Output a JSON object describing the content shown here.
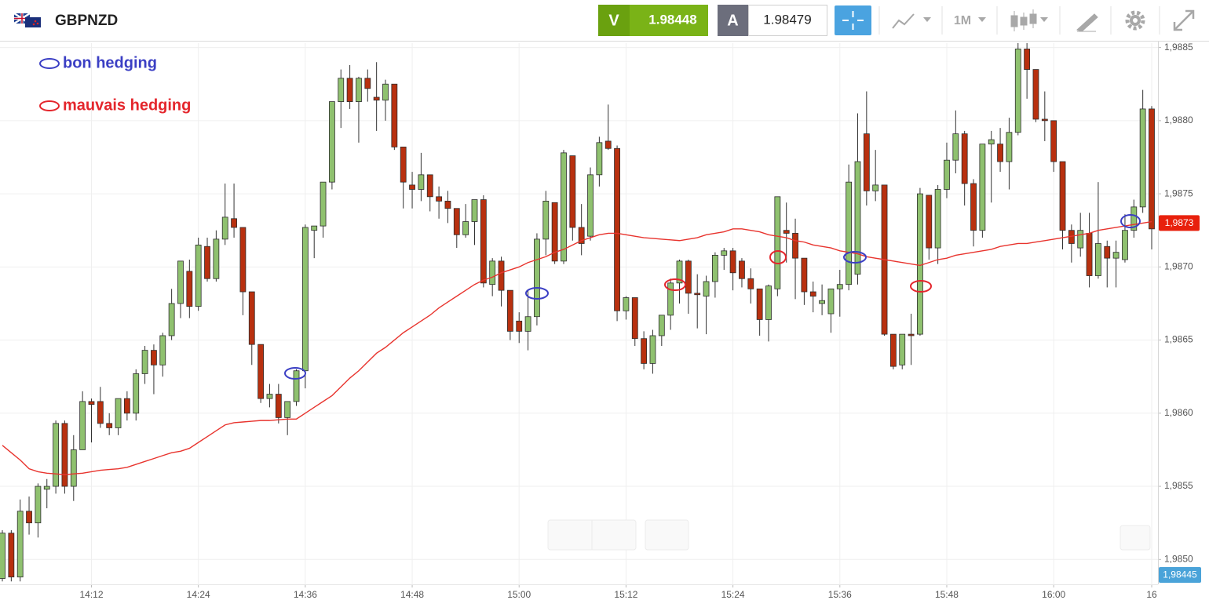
{
  "header": {
    "symbol": "GBPNZD",
    "sell_label": "V",
    "sell_price": "1.98448",
    "buy_label": "A",
    "buy_price": "1.98479",
    "timeframe": "1M"
  },
  "annotations": [
    {
      "label": "bon hedging",
      "color": "#3b3fc4"
    },
    {
      "label": "mauvais hedging",
      "color": "#e4262c"
    }
  ],
  "last_price": {
    "value": 1.9873,
    "label": "1,9873",
    "color": "#e8200c"
  },
  "bid_label": "1,98445",
  "chart_data": {
    "type": "candlestick",
    "up_color": "#8fc16f",
    "down_color": "#b8300f",
    "ylim": [
      1.98483,
      1.98853
    ],
    "yticks": [
      {
        "value": 1.985,
        "label": "1,9850"
      },
      {
        "value": 1.9855,
        "label": "1,9855"
      },
      {
        "value": 1.986,
        "label": "1,9860"
      },
      {
        "value": 1.9865,
        "label": "1,9865"
      },
      {
        "value": 1.987,
        "label": "1,9870"
      },
      {
        "value": 1.9875,
        "label": "1,9875"
      },
      {
        "value": 1.988,
        "label": "1,9880"
      },
      {
        "value": 1.9885,
        "label": "1,9885"
      }
    ],
    "grid": true,
    "categories": [
      null,
      null,
      null,
      null,
      null,
      null,
      null,
      null,
      null,
      null,
      "14:12",
      null,
      null,
      null,
      null,
      null,
      null,
      null,
      null,
      null,
      null,
      null,
      "14:24",
      null,
      null,
      null,
      null,
      null,
      null,
      null,
      null,
      null,
      null,
      null,
      "14:36",
      null,
      null,
      null,
      null,
      null,
      null,
      null,
      null,
      null,
      null,
      null,
      "14:48",
      null,
      null,
      null,
      null,
      null,
      null,
      null,
      null,
      null,
      null,
      null,
      "15:00",
      null,
      null,
      null,
      null,
      null,
      null,
      null,
      null,
      null,
      null,
      null,
      "15:12",
      null,
      null,
      null,
      null,
      null,
      null,
      null,
      null,
      null,
      null,
      null,
      "15:24",
      null,
      null,
      null,
      null,
      null,
      null,
      null,
      null,
      null,
      null,
      null,
      "15:36",
      null,
      null,
      null,
      null,
      null,
      null,
      null,
      null,
      null,
      null,
      null,
      "15:48",
      null,
      null,
      null,
      null,
      null,
      null,
      null,
      null,
      null,
      null,
      null,
      "16:00",
      null,
      null,
      null,
      null,
      null,
      null,
      null,
      null,
      null,
      null,
      "16"
    ],
    "open": [
      1.98487,
      1.98518,
      1.98488,
      1.98533,
      1.98525,
      1.98548,
      1.9855,
      1.98593,
      1.9855,
      1.98575,
      1.98608,
      1.98608,
      1.98593,
      1.9859,
      1.9861,
      1.986,
      1.98627,
      1.98643,
      1.98633,
      1.98653,
      1.98675,
      1.98697,
      1.98673,
      1.98714,
      1.98692,
      1.98719,
      1.98733,
      1.98727,
      1.98683,
      1.98647,
      1.9861,
      1.98613,
      1.98597,
      1.98608,
      1.98629,
      1.98725,
      1.98728,
      1.98758,
      1.98813,
      1.98829,
      1.98813,
      1.98829,
      1.98816,
      1.98814,
      1.98825,
      1.98782,
      1.98756,
      1.98753,
      1.98763,
      1.98748,
      1.98745,
      1.9874,
      1.98722,
      1.98731,
      1.98746,
      1.98688,
      1.98704,
      1.98684,
      1.98663,
      1.98656,
      1.98666,
      1.98719,
      1.98744,
      1.98704,
      1.98776,
      1.98727,
      1.98721,
      1.98763,
      1.98786,
      1.98781,
      1.9867,
      1.98679,
      1.98651,
      1.98634,
      1.98653,
      1.98667,
      1.98689,
      1.98704,
      1.98682,
      1.9868,
      1.9869,
      1.98708,
      1.98711,
      1.98704,
      1.98692,
      1.98685,
      1.98664,
      1.98685,
      1.98725,
      1.98723,
      1.98706,
      1.98683,
      1.98675,
      1.98668,
      1.98685,
      1.98688,
      1.98695,
      1.98791,
      1.98752,
      1.98756,
      1.98654,
      1.98633,
      1.98654,
      1.98654,
      1.98749,
      1.98713,
      1.98753,
      1.98773,
      1.98791,
      1.98757,
      1.98725,
      1.98784,
      1.98784,
      1.98772,
      1.98792,
      1.98849,
      1.98835,
      1.98801,
      1.988,
      1.98772,
      1.98725,
      1.98713,
      1.98723,
      1.98694,
      1.98714,
      1.98706,
      1.98705,
      1.98725,
      1.98741,
      1.98808
    ],
    "high": [
      1.9852,
      1.9852,
      1.98541,
      1.98543,
      1.98552,
      1.98555,
      1.98595,
      1.98595,
      1.98585,
      1.98615,
      1.9861,
      1.98618,
      1.986,
      1.9861,
      1.98615,
      1.9863,
      1.98646,
      1.98647,
      1.98655,
      1.98685,
      1.98704,
      1.98705,
      1.9872,
      1.9872,
      1.98725,
      1.98757,
      1.98757,
      1.98727,
      1.98683,
      1.98647,
      1.9862,
      1.9862,
      1.98608,
      1.9863,
      1.98729,
      1.98728,
      1.98758,
      1.98813,
      1.98835,
      1.98838,
      1.9883,
      1.98835,
      1.9884,
      1.98828,
      1.98825,
      1.98782,
      1.98765,
      1.98778,
      1.98763,
      1.98755,
      1.98752,
      1.9874,
      1.98743,
      1.98746,
      1.98749,
      1.98706,
      1.98707,
      1.98684,
      1.98669,
      1.98684,
      1.98723,
      1.98752,
      1.98744,
      1.9878,
      1.98776,
      1.98743,
      1.98768,
      1.98789,
      1.98811,
      1.98783,
      1.9868,
      1.98679,
      1.98656,
      1.98657,
      1.98667,
      1.98692,
      1.98705,
      1.98705,
      1.98695,
      1.98694,
      1.9871,
      1.98713,
      1.98713,
      1.98706,
      1.98699,
      1.98685,
      1.98688,
      1.98748,
      1.98744,
      1.98733,
      1.98706,
      1.9869,
      1.98688,
      1.98685,
      1.98698,
      1.9877,
      1.98805,
      1.9882,
      1.9878,
      1.98756,
      1.98654,
      1.98654,
      1.98668,
      1.98754,
      1.98749,
      1.98756,
      1.98785,
      1.98807,
      1.98793,
      1.9876,
      1.98784,
      1.98793,
      1.98795,
      1.98802,
      1.98859,
      1.98855,
      1.98835,
      1.9882,
      1.988,
      1.98772,
      1.98729,
      1.98737,
      1.98737,
      1.98758,
      1.98718,
      1.98718,
      1.98736,
      1.98746,
      1.98821,
      1.9881
    ],
    "low": [
      1.98485,
      1.98485,
      1.98485,
      1.98517,
      1.98515,
      1.98535,
      1.98545,
      1.98545,
      1.9854,
      1.98575,
      1.9858,
      1.9859,
      1.98585,
      1.98585,
      1.98595,
      1.98595,
      1.9862,
      1.98613,
      1.98625,
      1.9865,
      1.98665,
      1.98665,
      1.9867,
      1.9869,
      1.9869,
      1.98715,
      1.9872,
      1.98667,
      1.98633,
      1.98607,
      1.98604,
      1.98593,
      1.98585,
      1.98605,
      1.98617,
      1.98706,
      1.9872,
      1.98753,
      1.98795,
      1.98808,
      1.98785,
      1.98813,
      1.98793,
      1.988,
      1.9878,
      1.9874,
      1.9874,
      1.98745,
      1.98738,
      1.98733,
      1.9873,
      1.98713,
      1.9872,
      1.98715,
      1.98686,
      1.9868,
      1.98673,
      1.9865,
      1.98648,
      1.98643,
      1.9866,
      1.98708,
      1.98702,
      1.98702,
      1.98718,
      1.98708,
      1.98718,
      1.98755,
      1.9878,
      1.98663,
      1.98664,
      1.98646,
      1.9863,
      1.98627,
      1.98646,
      1.98657,
      1.98675,
      1.98668,
      1.98658,
      1.98654,
      1.98679,
      1.98698,
      1.98684,
      1.98686,
      1.98675,
      1.98653,
      1.98649,
      1.9868,
      1.98703,
      1.98678,
      1.98674,
      1.98669,
      1.98667,
      1.98655,
      1.98666,
      1.98684,
      1.98688,
      1.98742,
      1.98745,
      1.98653,
      1.9863,
      1.9863,
      1.98633,
      1.98653,
      1.98705,
      1.98702,
      1.98747,
      1.98764,
      1.98742,
      1.98714,
      1.9872,
      1.98744,
      1.98765,
      1.98753,
      1.9879,
      1.98815,
      1.98799,
      1.98786,
      1.98765,
      1.98712,
      1.98703,
      1.98707,
      1.98686,
      1.98692,
      1.98686,
      1.98686,
      1.98703,
      1.9872,
      1.98737,
      1.98712
    ],
    "close": [
      1.98518,
      1.98488,
      1.98533,
      1.98525,
      1.9855,
      1.9855,
      1.98593,
      1.9855,
      1.98575,
      1.98608,
      1.98606,
      1.98593,
      1.9859,
      1.9861,
      1.986,
      1.98627,
      1.98643,
      1.98633,
      1.98653,
      1.98675,
      1.98704,
      1.98673,
      1.98715,
      1.98692,
      1.98719,
      1.98734,
      1.98727,
      1.98683,
      1.98647,
      1.9861,
      1.98613,
      1.98597,
      1.98608,
      1.98629,
      1.98727,
      1.98728,
      1.98758,
      1.98813,
      1.98829,
      1.98813,
      1.98829,
      1.98822,
      1.98814,
      1.98825,
      1.98782,
      1.98758,
      1.98753,
      1.98763,
      1.98748,
      1.98745,
      1.9874,
      1.98722,
      1.98731,
      1.98746,
      1.98689,
      1.98704,
      1.98684,
      1.98656,
      1.98656,
      1.98666,
      1.98719,
      1.98745,
      1.98704,
      1.98778,
      1.98727,
      1.98716,
      1.98763,
      1.98785,
      1.98781,
      1.9867,
      1.98679,
      1.98651,
      1.98634,
      1.98653,
      1.98667,
      1.98689,
      1.98704,
      1.98682,
      1.98681,
      1.9869,
      1.98708,
      1.98711,
      1.98696,
      1.98692,
      1.98685,
      1.98664,
      1.98687,
      1.98748,
      1.98723,
      1.98706,
      1.98683,
      1.9868,
      1.98677,
      1.98685,
      1.98688,
      1.98758,
      1.98772,
      1.98752,
      1.98756,
      1.98654,
      1.98632,
      1.98654,
      1.98653,
      1.9875,
      1.98713,
      1.98753,
      1.98773,
      1.98791,
      1.98757,
      1.98725,
      1.98784,
      1.98787,
      1.98772,
      1.98792,
      1.98849,
      1.98835,
      1.98801,
      1.988,
      1.98772,
      1.98725,
      1.98716,
      1.98725,
      1.98694,
      1.98716,
      1.98706,
      1.9871,
      1.98725,
      1.98741,
      1.98808,
      1.98726
    ],
    "overlay": {
      "type": "line",
      "color": "#e8342e",
      "values": [
        1.98578,
        1.98573,
        1.98568,
        1.98562,
        1.9856,
        1.98559,
        1.985585,
        1.98558,
        1.985585,
        1.98559,
        1.9856,
        1.98561,
        1.985615,
        1.98562,
        1.98563,
        1.98565,
        1.98567,
        1.98569,
        1.98571,
        1.98573,
        1.98574,
        1.98576,
        1.9858,
        1.98584,
        1.98588,
        1.98592,
        1.985935,
        1.98594,
        1.985945,
        1.98595,
        1.98595,
        1.985955,
        1.98596,
        1.98596,
        1.986,
        1.98604,
        1.98608,
        1.98612,
        1.98618,
        1.98624,
        1.98629,
        1.98635,
        1.98641,
        1.98645,
        1.9865,
        1.98655,
        1.98659,
        1.98663,
        1.98667,
        1.98672,
        1.98676,
        1.9868,
        1.98684,
        1.98688,
        1.98691,
        1.98693,
        1.98696,
        1.98698,
        1.987,
        1.98703,
        1.98705,
        1.98707,
        1.9871,
        1.98712,
        1.98715,
        1.98718,
        1.9872,
        1.98722,
        1.98723,
        1.98723,
        1.98722,
        1.98721,
        1.9872,
        1.987195,
        1.98719,
        1.987185,
        1.98718,
        1.98719,
        1.9872,
        1.98722,
        1.98723,
        1.98724,
        1.98726,
        1.98726,
        1.98725,
        1.98724,
        1.98722,
        1.98721,
        1.9872,
        1.98718,
        1.98717,
        1.98715,
        1.98714,
        1.98713,
        1.98711,
        1.9871,
        1.98709,
        1.98707,
        1.98706,
        1.98705,
        1.98704,
        1.98703,
        1.98702,
        1.98701,
        1.98703,
        1.98705,
        1.98706,
        1.98708,
        1.98709,
        1.9871,
        1.98711,
        1.98712,
        1.98714,
        1.98715,
        1.98716,
        1.98716,
        1.98717,
        1.98718,
        1.98719,
        1.9872,
        1.98721,
        1.98722,
        1.98723,
        1.98725,
        1.98726,
        1.98727,
        1.98728,
        1.98729,
        1.9873,
        1.98731
      ]
    }
  }
}
